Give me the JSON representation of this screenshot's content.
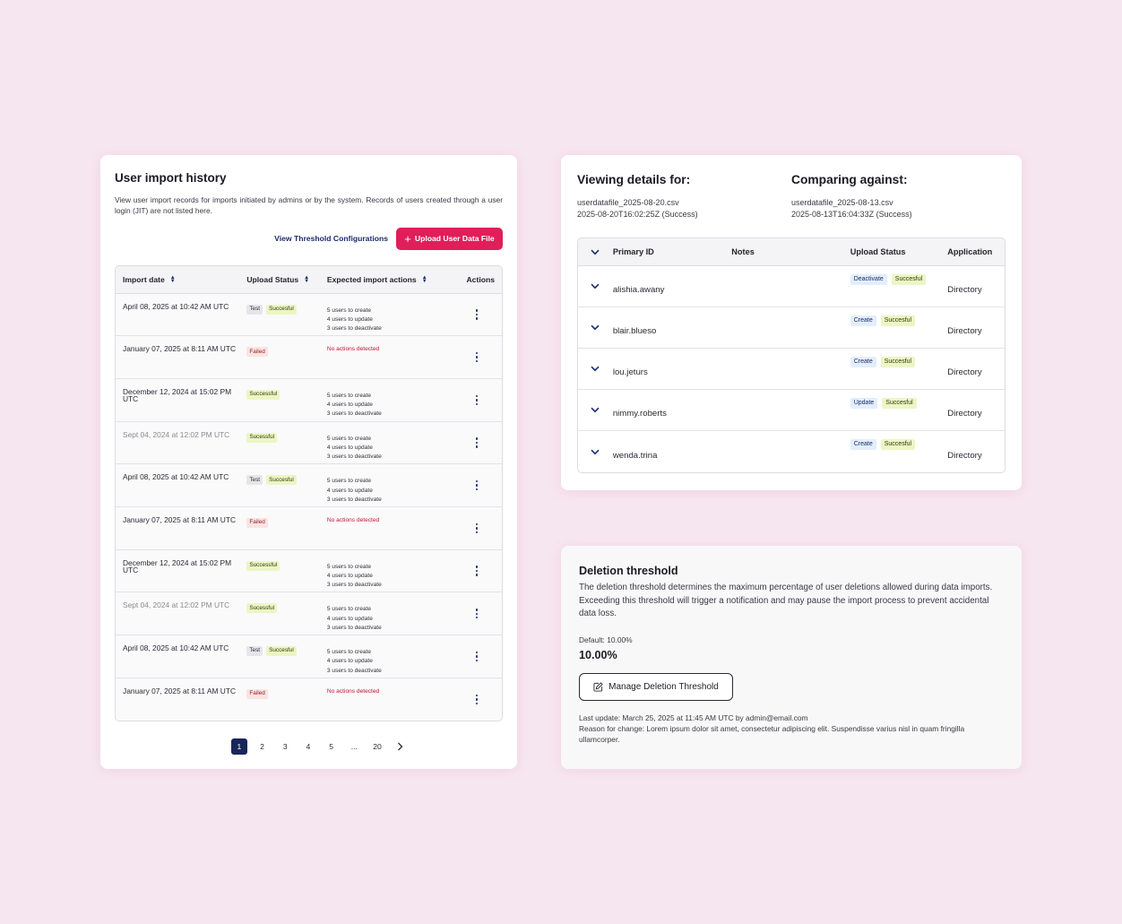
{
  "history": {
    "title": "User import history",
    "description": "View user import records for imports initiated by admins or by the system. Records of users created through a user login (JIT) are not listed here.",
    "view_threshold_link": "View Threshold Configurations",
    "upload_button": "Upload User Data File",
    "columns": {
      "import_date": "Import date",
      "upload_status": "Upload Status",
      "expected_actions": "Expected import actions",
      "actions": "Actions"
    },
    "rows": [
      {
        "date": "April 08, 2025 at 10:42 AM UTC",
        "muted": false,
        "badges": [
          {
            "label": "Test",
            "kind": "test"
          },
          {
            "label": "Succesful",
            "kind": "success"
          }
        ],
        "actions": [
          "5 users to create",
          "4 users to update",
          "3 users to deactivate"
        ]
      },
      {
        "date": "January 07, 2025 at 8:11 AM UTC",
        "muted": false,
        "badges": [
          {
            "label": "Failed",
            "kind": "failed"
          }
        ],
        "actions": [
          "No actions detected"
        ],
        "none": true
      },
      {
        "date": "December 12, 2024 at 15:02 PM UTC",
        "muted": false,
        "badges": [
          {
            "label": "Successful",
            "kind": "success"
          }
        ],
        "actions": [
          "5 users to create",
          "4 users to update",
          "3 users to deactivate"
        ]
      },
      {
        "date": "Sept 04, 2024 at 12:02 PM UTC",
        "muted": true,
        "badges": [
          {
            "label": "Sucessful",
            "kind": "success"
          }
        ],
        "actions": [
          "5 users to create",
          "4 users to update",
          "3 users to deactivate"
        ]
      },
      {
        "date": "April 08, 2025 at 10:42 AM UTC",
        "muted": false,
        "badges": [
          {
            "label": "Test",
            "kind": "test"
          },
          {
            "label": "Succesful",
            "kind": "success"
          }
        ],
        "actions": [
          "5 users to create",
          "4 users to update",
          "3 users to deactivate"
        ]
      },
      {
        "date": "January 07, 2025 at 8:11 AM UTC",
        "muted": false,
        "badges": [
          {
            "label": "Failed",
            "kind": "failed"
          }
        ],
        "actions": [
          "No actions detected"
        ],
        "none": true
      },
      {
        "date": "December 12, 2024 at 15:02 PM UTC",
        "muted": false,
        "badges": [
          {
            "label": "Successful",
            "kind": "success"
          }
        ],
        "actions": [
          "5 users to create",
          "4 users to update",
          "3 users to deactivate"
        ]
      },
      {
        "date": "Sept 04, 2024 at 12:02 PM UTC",
        "muted": true,
        "badges": [
          {
            "label": "Sucessful",
            "kind": "success"
          }
        ],
        "actions": [
          "5 users to create",
          "4 users to update",
          "3 users to deactivate"
        ]
      },
      {
        "date": "April 08, 2025 at 10:42 AM UTC",
        "muted": false,
        "badges": [
          {
            "label": "Test",
            "kind": "test"
          },
          {
            "label": "Succesful",
            "kind": "success"
          }
        ],
        "actions": [
          "5 users to create",
          "4 users to update",
          "3 users to deactivate"
        ]
      },
      {
        "date": "January 07, 2025 at 8:11 AM UTC",
        "muted": false,
        "badges": [
          {
            "label": "Failed",
            "kind": "failed"
          }
        ],
        "actions": [
          "No actions detected"
        ],
        "none": true
      }
    ],
    "pagination": {
      "pages": [
        "1",
        "2",
        "3",
        "4",
        "5",
        "...",
        "20"
      ],
      "current": "1"
    }
  },
  "compare": {
    "viewing_title": "Viewing details for:",
    "viewing_file": "userdatafile_2025-08-20.csv",
    "viewing_status": "2025-08-20T16:02:25Z (Success)",
    "comparing_title": "Comparing against:",
    "comparing_file": "userdatafile_2025-08-13.csv",
    "comparing_status": "2025-08-13T16:04:33Z (Success)",
    "columns": {
      "primary_id": "Primary ID",
      "notes": "Notes",
      "upload_status": "Upload Status",
      "application": "Application"
    },
    "rows": [
      {
        "id": "alishia.awany",
        "action": "Deactivate",
        "status": "Succesful",
        "app": "Directory"
      },
      {
        "id": "blair.blueso",
        "action": "Create",
        "status": "Succesful",
        "app": "Directory"
      },
      {
        "id": "lou.jeturs",
        "action": "Create",
        "status": "Succesful",
        "app": "Directory"
      },
      {
        "id": "nimmy.roberts",
        "action": "Update",
        "status": "Succesful",
        "app": "Directory"
      },
      {
        "id": "wenda.trina",
        "action": "Create",
        "status": "Succesful",
        "app": "Directory"
      }
    ]
  },
  "threshold": {
    "title": "Deletion threshold",
    "description": "The deletion threshold determines the maximum percentage of user deletions allowed during data imports. Exceeding this threshold will trigger a notification and may pause the import process to prevent accidental data loss.",
    "default_label": "Default: 10.00%",
    "value": "10.00%",
    "manage_button": "Manage Deletion Threshold",
    "last_update": "Last update: March 25, 2025 at 11:45 AM UTC by admin@email.com",
    "reason": "Reason for change: Lorem ipsum dolor sit amet, consectetur adipiscing elit. Suspendisse varius nisl in quam fringilla ullamcorper."
  },
  "icons": {
    "upload": "plus-icon",
    "sort": "sort-icon",
    "row_menu": "kebab-menu-icon",
    "expand": "chevron-down-icon",
    "edit": "edit-icon",
    "next": "chevron-right-icon"
  },
  "colors": {
    "accent": "#e01e5a",
    "navy": "#182659",
    "background": "#f6e6ef",
    "success_badge": "#ecf6c4",
    "failed_text": "#c8102e"
  }
}
